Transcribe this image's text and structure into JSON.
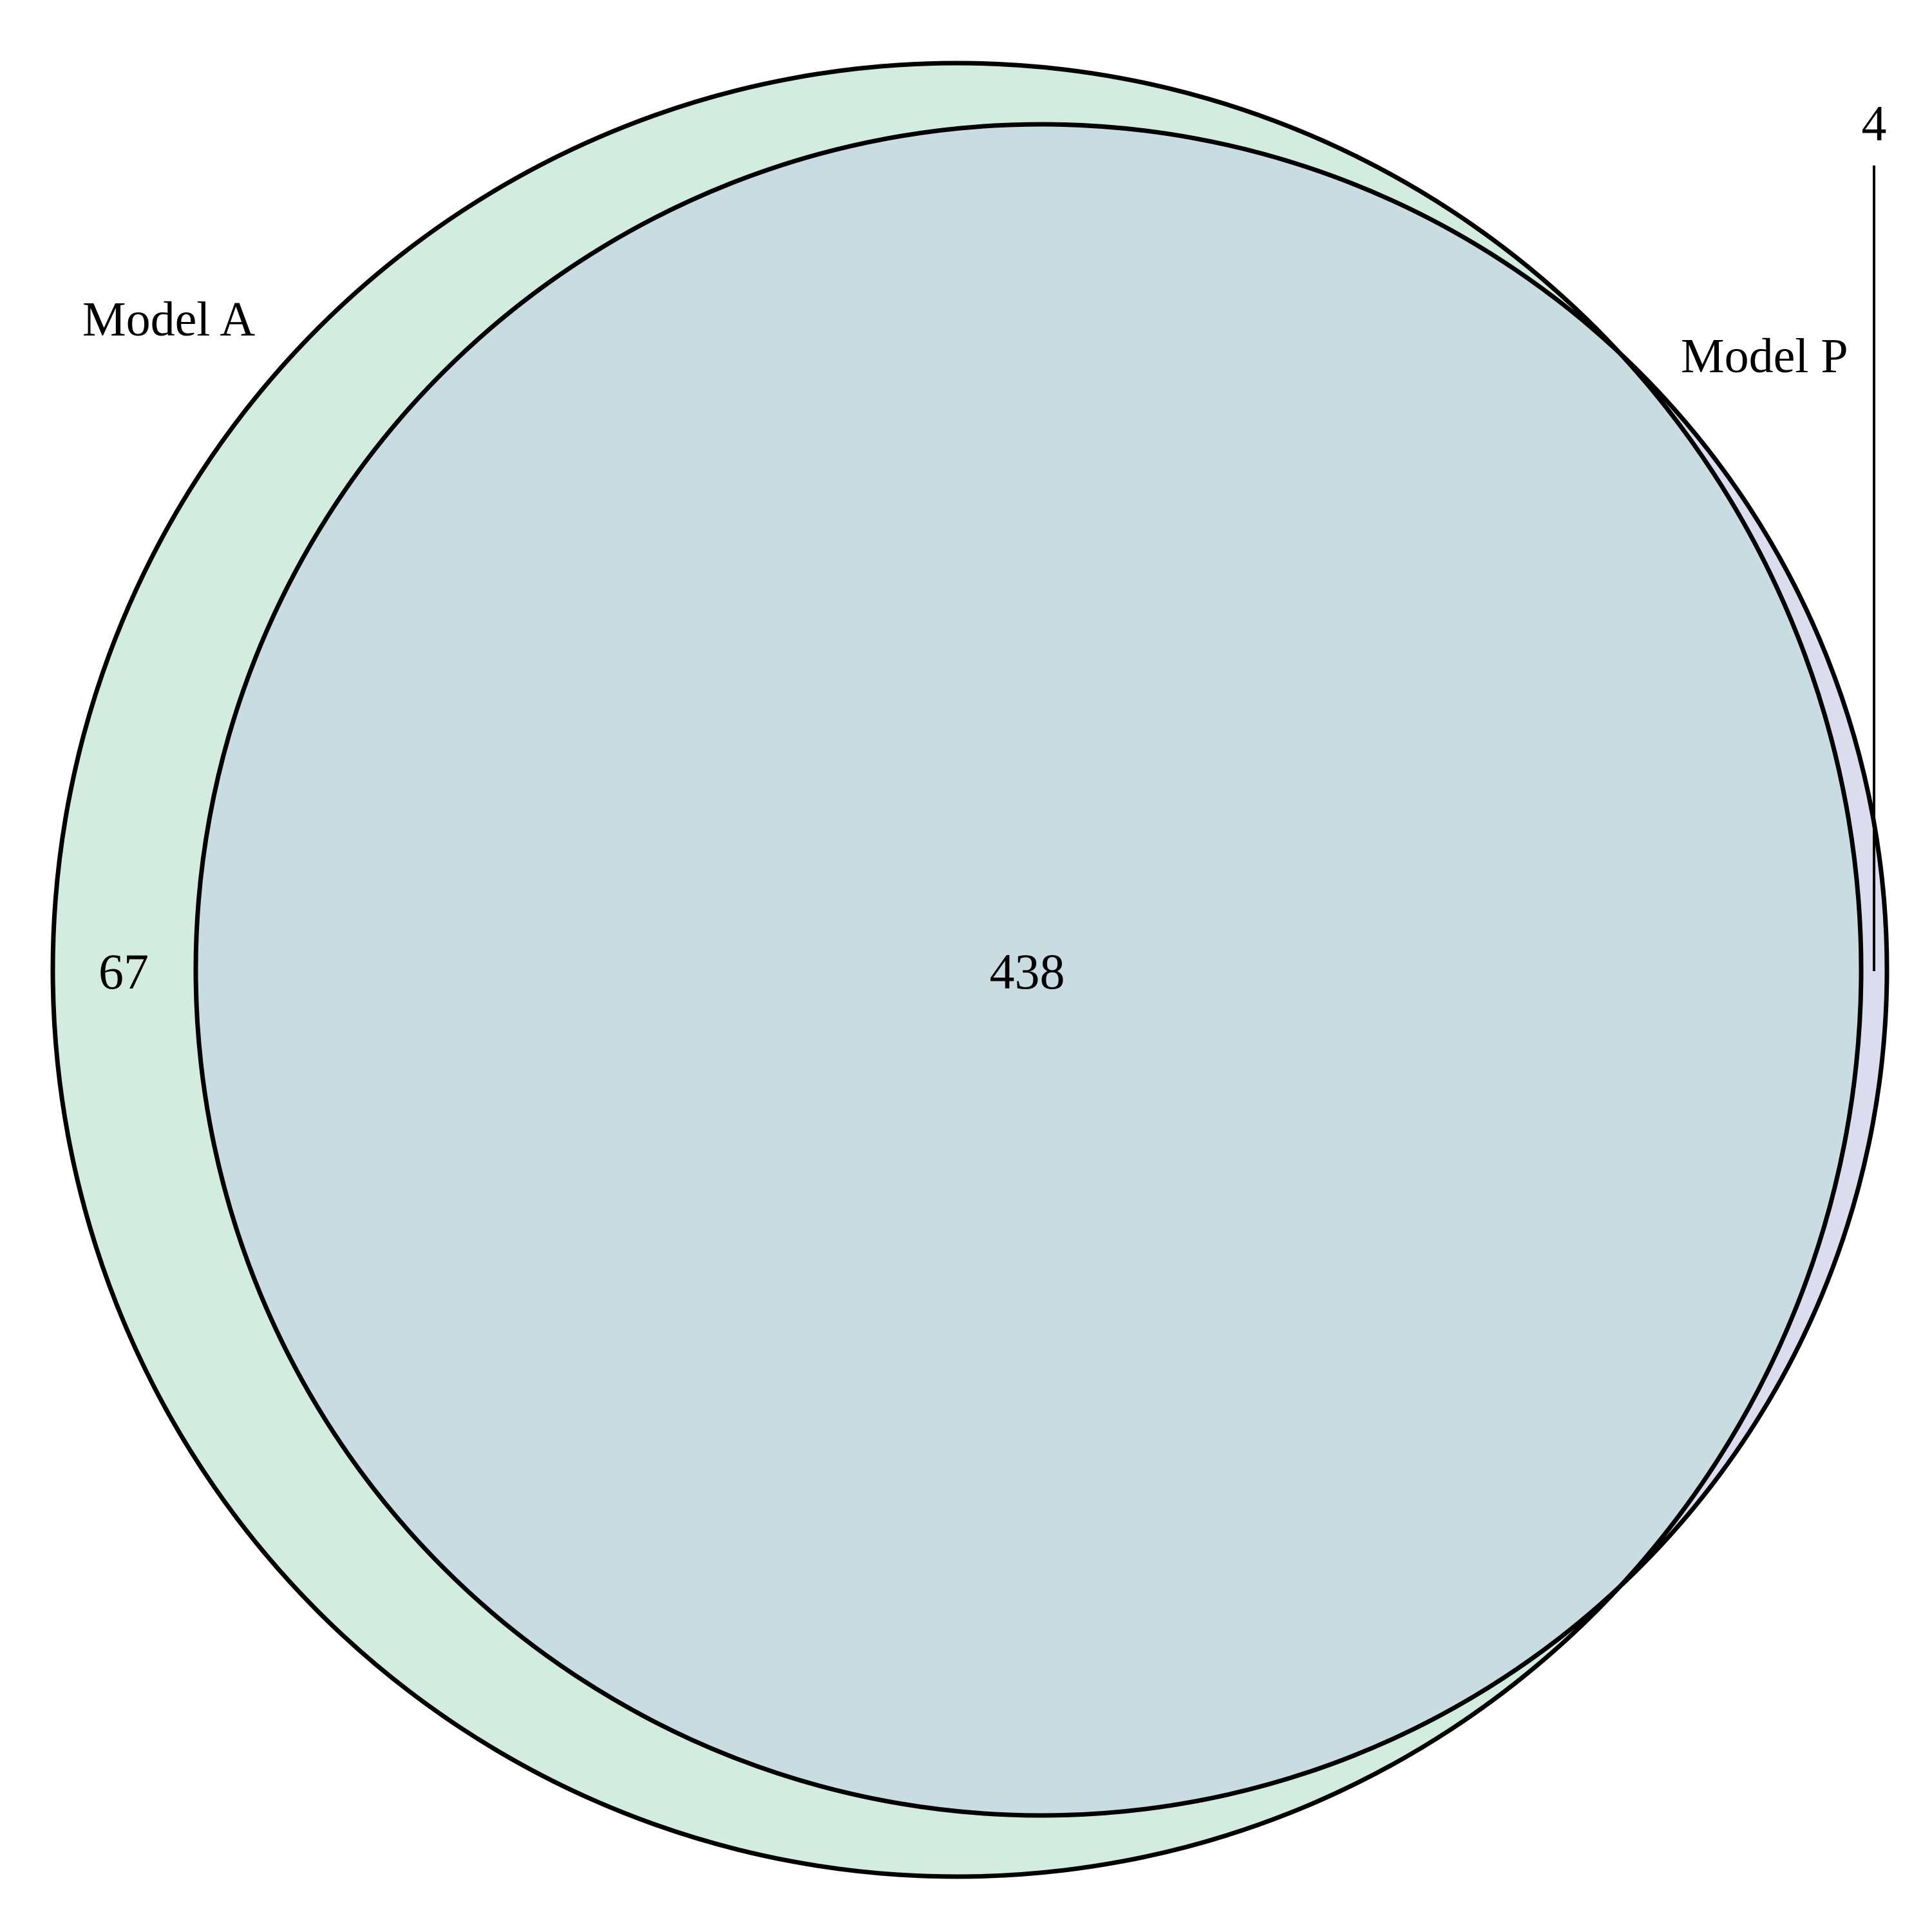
{
  "diagram": {
    "type": "venn2",
    "sets": [
      {
        "name": "Model A",
        "color": "#d2ede0"
      },
      {
        "name": "Model P",
        "color": "#dcdcef"
      }
    ],
    "overlap_color": "#c8dce2",
    "outline_color": "#000000",
    "regions": {
      "only_a": "67",
      "both": "438",
      "only_p": "4"
    }
  }
}
